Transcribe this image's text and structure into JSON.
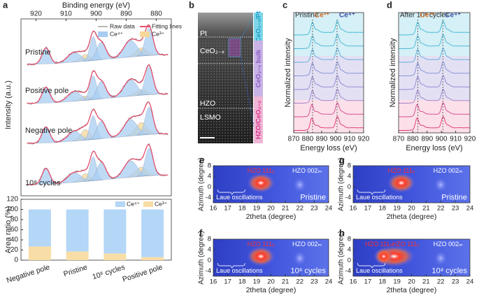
{
  "chart_data": [
    {
      "type": "spectra",
      "panel": "a",
      "xlabel": "Binding energy (eV)",
      "ylabel": "Intensity (a.u.)",
      "xlim": [
        925,
        875
      ],
      "xticks": [
        920,
        910,
        900,
        890,
        880
      ],
      "series": [
        {
          "name": "Raw data",
          "color": "#8a8a8a"
        },
        {
          "name": "Fitting lines",
          "color": "#e4506e"
        },
        {
          "name": "Ce⁴⁺",
          "color": "#a9cdf2"
        },
        {
          "name": "Ce³⁺",
          "color": "#f6d89a"
        }
      ],
      "labels": [
        "Pristine",
        "Positive pole",
        "Negative pole",
        "10⁸ cycles"
      ]
    },
    {
      "type": "bar",
      "stacked": true,
      "ylabel": "Area ratio (%)",
      "categories": [
        "Negative pole",
        "Pristine",
        "10⁸ cycles",
        "Positive pole"
      ],
      "series": [
        {
          "name": "Ce⁴⁺",
          "color": "#b4d6f7",
          "values": [
            73,
            83,
            87,
            94
          ]
        },
        {
          "name": "Ce³⁺",
          "color": "#f8dea6",
          "values": [
            27,
            17,
            13,
            6
          ]
        }
      ],
      "ylim": [
        0,
        120
      ],
      "yticks": [
        0,
        20,
        40,
        60,
        80,
        100,
        120
      ]
    },
    {
      "type": "image",
      "panel": "b",
      "labels": [
        "Pt",
        "CeO₂₋ₓ",
        "HZO",
        "LSMO"
      ],
      "side_labels": [
        "CeO₂₋ₓ/Pt",
        "CeO₂₋ₓ bulk",
        "HZO/CeO₂₋ₓ"
      ]
    },
    {
      "type": "spectra",
      "panel": "c",
      "xlabel": "Energy loss (eV)",
      "ylabel": "Normalized intensity",
      "xlim": [
        870,
        920
      ],
      "xticks": [
        870,
        880,
        890,
        900,
        910,
        920
      ],
      "note": "Pristine",
      "peaks": [
        "Ce³⁺",
        "Ce⁴⁺"
      ]
    },
    {
      "type": "spectra",
      "panel": "d",
      "xlabel": "Energy loss (eV)",
      "ylabel": "Normalized intensity",
      "xlim": [
        870,
        920
      ],
      "xticks": [
        870,
        880,
        890,
        900,
        910,
        920
      ],
      "note": "After 10⁸ cycles",
      "peaks": [
        "Ce³⁺",
        "Ce⁴⁺"
      ]
    },
    {
      "type": "heatmap",
      "panel": "e",
      "xlabel": "2theta (degree)",
      "ylabel": "Azimuth (degree)",
      "xlim": [
        16,
        24
      ],
      "xticks": [
        16,
        17,
        18,
        19,
        20,
        21,
        22,
        23,
        24
      ],
      "ylim": [
        -6,
        8
      ],
      "yticks": [
        -4,
        0,
        4,
        8
      ],
      "labels": [
        "HZO 111ₒ",
        "HZO 002ₘ"
      ],
      "laue": "Laue oscillations",
      "note": "Pristine"
    },
    {
      "type": "heatmap",
      "panel": "f",
      "xlabel": "2theta (degree)",
      "ylabel": "Azimuth (degree)",
      "xlim": [
        16,
        24
      ],
      "xticks": [
        16,
        17,
        18,
        19,
        20,
        21,
        22,
        23,
        24
      ],
      "ylim": [
        -6,
        8
      ],
      "yticks": [
        -4,
        0,
        4,
        8
      ],
      "labels": [
        "HZO 111ₒ",
        "HZO 002ₘ"
      ],
      "laue": "Laue oscillations",
      "note": "10⁸ cycles"
    },
    {
      "type": "heatmap",
      "panel": "g",
      "xlabel": "2theta (degree)",
      "ylabel": "Azimuth (degree)",
      "xlim": [
        16,
        24
      ],
      "xticks": [
        16,
        17,
        18,
        19,
        20,
        21,
        22,
        23,
        24
      ],
      "ylim": [
        -6,
        8
      ],
      "yticks": [
        -4,
        0,
        4,
        8
      ],
      "labels": [
        "HZO 111ₒ",
        "HZO 002ₘ"
      ],
      "laue": "Laue oscillations",
      "note": "Pristine"
    },
    {
      "type": "heatmap",
      "panel": "h",
      "xlabel": "2theta (degree)",
      "ylabel": "Azimuth (degree)",
      "xlim": [
        16,
        24
      ],
      "xticks": [
        16,
        17,
        18,
        19,
        20,
        21,
        22,
        23,
        24
      ],
      "ylim": [
        -6,
        8
      ],
      "yticks": [
        -4,
        0,
        4,
        8
      ],
      "labels": [
        "HZO 111ₘ",
        "HZO 111ₒ",
        "HZO 002ₘ"
      ],
      "laue": "Laue oscillations",
      "note": "10⁸ cycles"
    }
  ]
}
